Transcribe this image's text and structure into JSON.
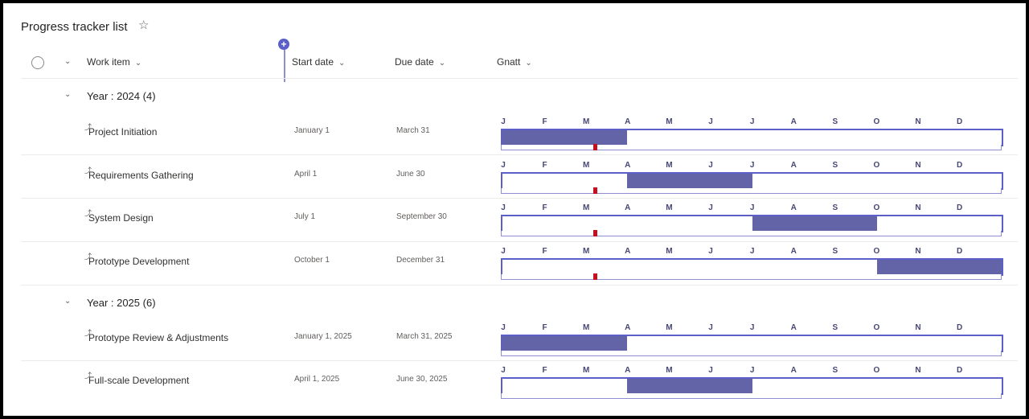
{
  "header": {
    "title": "Progress tracker list"
  },
  "columns": {
    "work_item": "Work item",
    "start_date": "Start date",
    "due_date": "Due date",
    "gantt": "Gnatt"
  },
  "months": [
    "J",
    "F",
    "M",
    "A",
    "M",
    "J",
    "J",
    "A",
    "S",
    "O",
    "N",
    "D"
  ],
  "groups": [
    {
      "label": "Year : 2024 (4)"
    },
    {
      "label": "Year : 2025 (6)"
    }
  ],
  "rows": [
    {
      "work_item": "Project Initiation",
      "start": "January 1",
      "due": "March 31",
      "start_month": 0,
      "end_month": 3,
      "today_marker": true
    },
    {
      "work_item": "Requirements Gathering",
      "start": "April 1",
      "due": "June 30",
      "start_month": 3,
      "end_month": 6,
      "today_marker": true
    },
    {
      "work_item": "System Design",
      "start": "July 1",
      "due": "September 30",
      "start_month": 6,
      "end_month": 9,
      "today_marker": true
    },
    {
      "work_item": "Prototype Development",
      "start": "October 1",
      "due": "December 31",
      "start_month": 9,
      "end_month": 12,
      "today_marker": true
    },
    {
      "work_item": "Prototype Review & Adjustments",
      "start": "January 1, 2025",
      "due": "March 31, 2025",
      "start_month": 0,
      "end_month": 3,
      "today_marker": false
    },
    {
      "work_item": "Full-scale Development",
      "start": "April 1, 2025",
      "due": "June 30, 2025",
      "start_month": 3,
      "end_month": 6,
      "today_marker": false
    }
  ],
  "colors": {
    "bar": "#6264a7",
    "border": "#5b5fc7",
    "today": "#c50f1f"
  }
}
